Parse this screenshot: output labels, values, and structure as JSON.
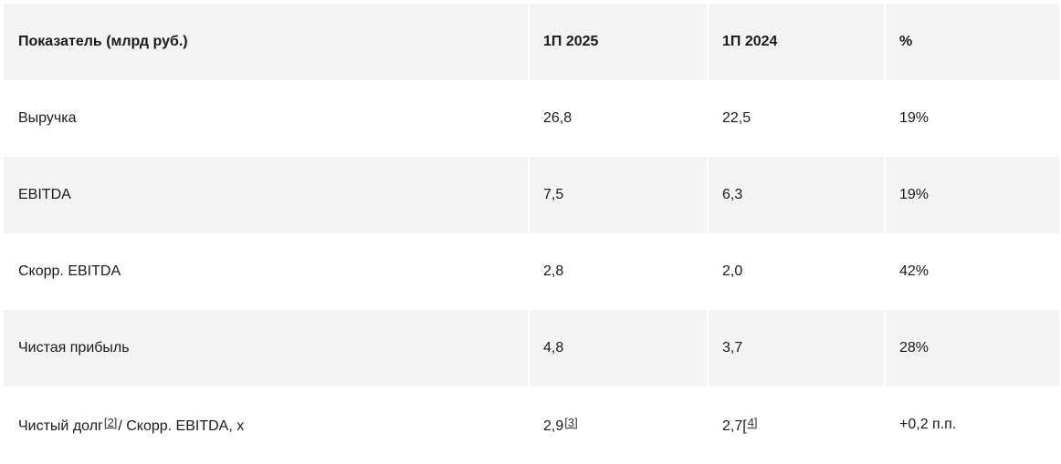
{
  "table": {
    "headers": [
      "Показатель (млрд руб.)",
      "1П 2025",
      "1П 2024",
      "%"
    ],
    "rows": [
      {
        "indicator": "Выручка",
        "h1_2025": "26,8",
        "h1_2024": "22,5",
        "change": "19%"
      },
      {
        "indicator": "EBITDA",
        "h1_2025": "7,5",
        "h1_2024": "6,3",
        "change": "19%"
      },
      {
        "indicator": "Скорр. EBITDA",
        "h1_2025": "2,8",
        "h1_2024": "2,0",
        "change": "42%"
      },
      {
        "indicator": "Чистая прибыль",
        "h1_2025": "4,8",
        "h1_2024": "3,7",
        "change": "28%"
      },
      {
        "indicator_part1": "Чистый долг",
        "indicator_footnote": "[2]",
        "indicator_part2": "/ Скорр. EBITDA, х",
        "h1_2025": "2,9",
        "h1_2025_footnote": "[3]",
        "h1_2024": "2,7[",
        "h1_2024_footnote": "4]",
        "change": "+0,2 п.п."
      }
    ]
  },
  "colors": {
    "shade": "#f3f3f3",
    "text": "#1a1a1a"
  }
}
